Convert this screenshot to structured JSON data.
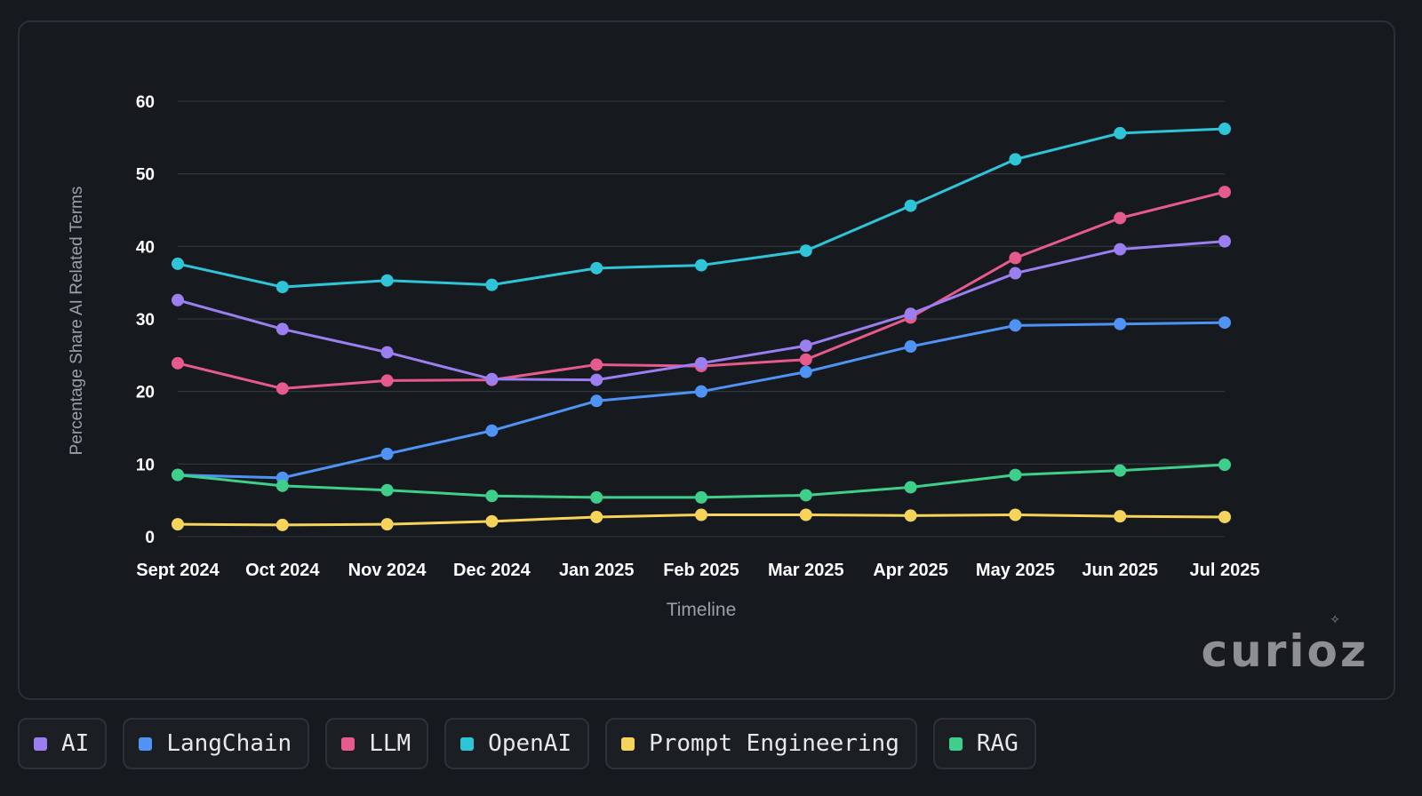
{
  "chart_data": {
    "type": "line",
    "title": "",
    "xlabel": "Timeline",
    "ylabel": "Percentage Share AI Related Terms",
    "ylim": [
      0,
      60
    ],
    "yticks": [
      0,
      10,
      20,
      30,
      40,
      50,
      60
    ],
    "grid": true,
    "legend": "bottom",
    "categories": [
      "Sept 2024",
      "Oct 2024",
      "Nov 2024",
      "Dec 2024",
      "Jan 2025",
      "Feb 2025",
      "Mar 2025",
      "Apr 2025",
      "May 2025",
      "Jun 2025",
      "Jul 2025"
    ],
    "series": [
      {
        "name": "OpenAI",
        "color": "#2ec5d8",
        "values": [
          37.6,
          34.4,
          35.3,
          34.7,
          37.0,
          37.4,
          39.4,
          45.6,
          52.0,
          55.6,
          56.2
        ]
      },
      {
        "name": "LLM",
        "color": "#e75b8c",
        "values": [
          23.9,
          20.4,
          21.5,
          21.6,
          23.7,
          23.5,
          24.4,
          30.2,
          38.4,
          43.9,
          47.5
        ]
      },
      {
        "name": "AI",
        "color": "#9b7ef0",
        "values": [
          32.6,
          28.6,
          25.4,
          21.7,
          21.6,
          23.9,
          26.3,
          30.7,
          36.3,
          39.6,
          40.7
        ]
      },
      {
        "name": "LangChain",
        "color": "#4f93f5",
        "values": [
          8.5,
          8.1,
          11.4,
          14.6,
          18.7,
          20.0,
          22.7,
          26.2,
          29.1,
          29.3,
          29.5
        ]
      },
      {
        "name": "RAG",
        "color": "#3ecf8a",
        "values": [
          8.5,
          7.0,
          6.4,
          5.6,
          5.4,
          5.4,
          5.7,
          6.8,
          8.5,
          9.1,
          9.9
        ]
      },
      {
        "name": "Prompt Engineering",
        "color": "#f6d45c",
        "values": [
          1.7,
          1.6,
          1.7,
          2.1,
          2.7,
          3.0,
          3.0,
          2.9,
          3.0,
          2.8,
          2.7
        ]
      }
    ]
  },
  "legend_items": [
    {
      "label": "AI",
      "color": "#9b7ef0"
    },
    {
      "label": "LangChain",
      "color": "#4f93f5"
    },
    {
      "label": "LLM",
      "color": "#e75b8c"
    },
    {
      "label": "OpenAI",
      "color": "#2ec5d8"
    },
    {
      "label": "Prompt Engineering",
      "color": "#f6d45c"
    },
    {
      "label": "RAG",
      "color": "#3ecf8a"
    }
  ],
  "watermark": "curioz"
}
